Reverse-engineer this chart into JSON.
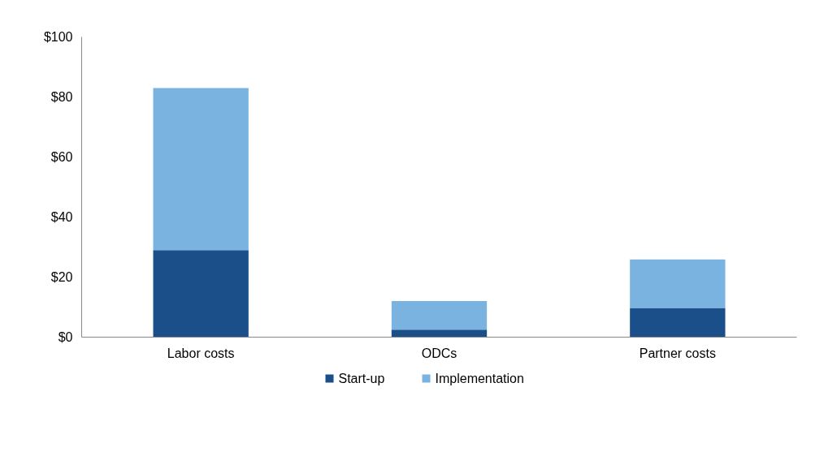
{
  "chart_data": {
    "type": "bar",
    "stacked": true,
    "categories": [
      "Labor costs",
      "ODCs",
      "Partner costs"
    ],
    "series": [
      {
        "name": "Start-up",
        "color": "#1b4f8a",
        "values": [
          29,
          2.5,
          9.7
        ]
      },
      {
        "name": "Implementation",
        "color": "#7ab3e0",
        "values": [
          54,
          9.5,
          16.2
        ]
      }
    ],
    "ylim": [
      0,
      100
    ],
    "yticks": [
      {
        "value": 0,
        "label": "$0"
      },
      {
        "value": 20,
        "label": "$20"
      },
      {
        "value": 40,
        "label": "$40"
      },
      {
        "value": 60,
        "label": "$60"
      },
      {
        "value": 80,
        "label": "$80"
      },
      {
        "value": 100,
        "label": "$100"
      }
    ],
    "grid": false,
    "legend": "bottom"
  }
}
